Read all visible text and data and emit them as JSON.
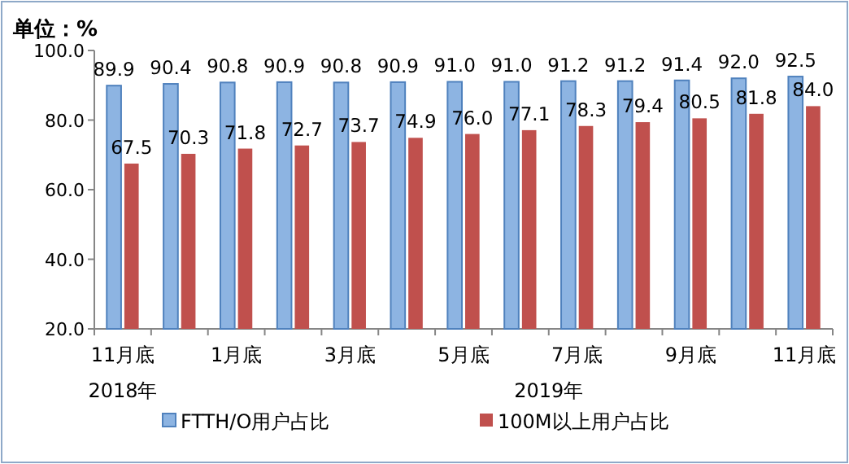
{
  "chart_data": {
    "type": "bar",
    "ylabel": "单位：%",
    "categories": [
      "11月底",
      null,
      "1月底",
      null,
      "3月底",
      null,
      "5月底",
      null,
      "7月底",
      null,
      "9月底",
      null,
      "11月底"
    ],
    "series": [
      {
        "name": "FTTH/O用户占比",
        "color": "#8db4e2",
        "values": [
          89.9,
          90.4,
          90.8,
          90.9,
          90.8,
          90.9,
          91.0,
          91.0,
          91.2,
          91.2,
          91.4,
          92.0,
          92.5
        ],
        "value_labels": [
          "89.9",
          "90.4",
          "90.8",
          "90.9",
          "90.8",
          "90.9",
          "91.0",
          "91.0",
          "91.2",
          "91.2",
          "91.4",
          "92.0",
          "92.5"
        ]
      },
      {
        "name": "100M以上用户占比",
        "color": "#c0504d",
        "values": [
          67.5,
          70.3,
          71.8,
          72.7,
          73.7,
          74.9,
          76.0,
          77.1,
          78.3,
          79.4,
          80.5,
          81.8,
          84.0
        ],
        "value_labels": [
          "67.5",
          "70.3",
          "71.8",
          "72.7",
          "73.7",
          "74.9",
          "76.0",
          "77.1",
          "78.3",
          "79.4",
          "80.5",
          "81.8",
          "84.0"
        ]
      }
    ],
    "ylim": [
      20,
      100
    ],
    "yticks": [
      {
        "value": 20,
        "label": "20.0"
      },
      {
        "value": 40,
        "label": "40.0"
      },
      {
        "value": 60,
        "label": "60.0"
      },
      {
        "value": 80,
        "label": "80.0"
      },
      {
        "value": 100,
        "label": "100.0"
      }
    ],
    "annotations": [
      "2018年",
      "2019年"
    ],
    "grid": false,
    "legend": "bottom"
  }
}
